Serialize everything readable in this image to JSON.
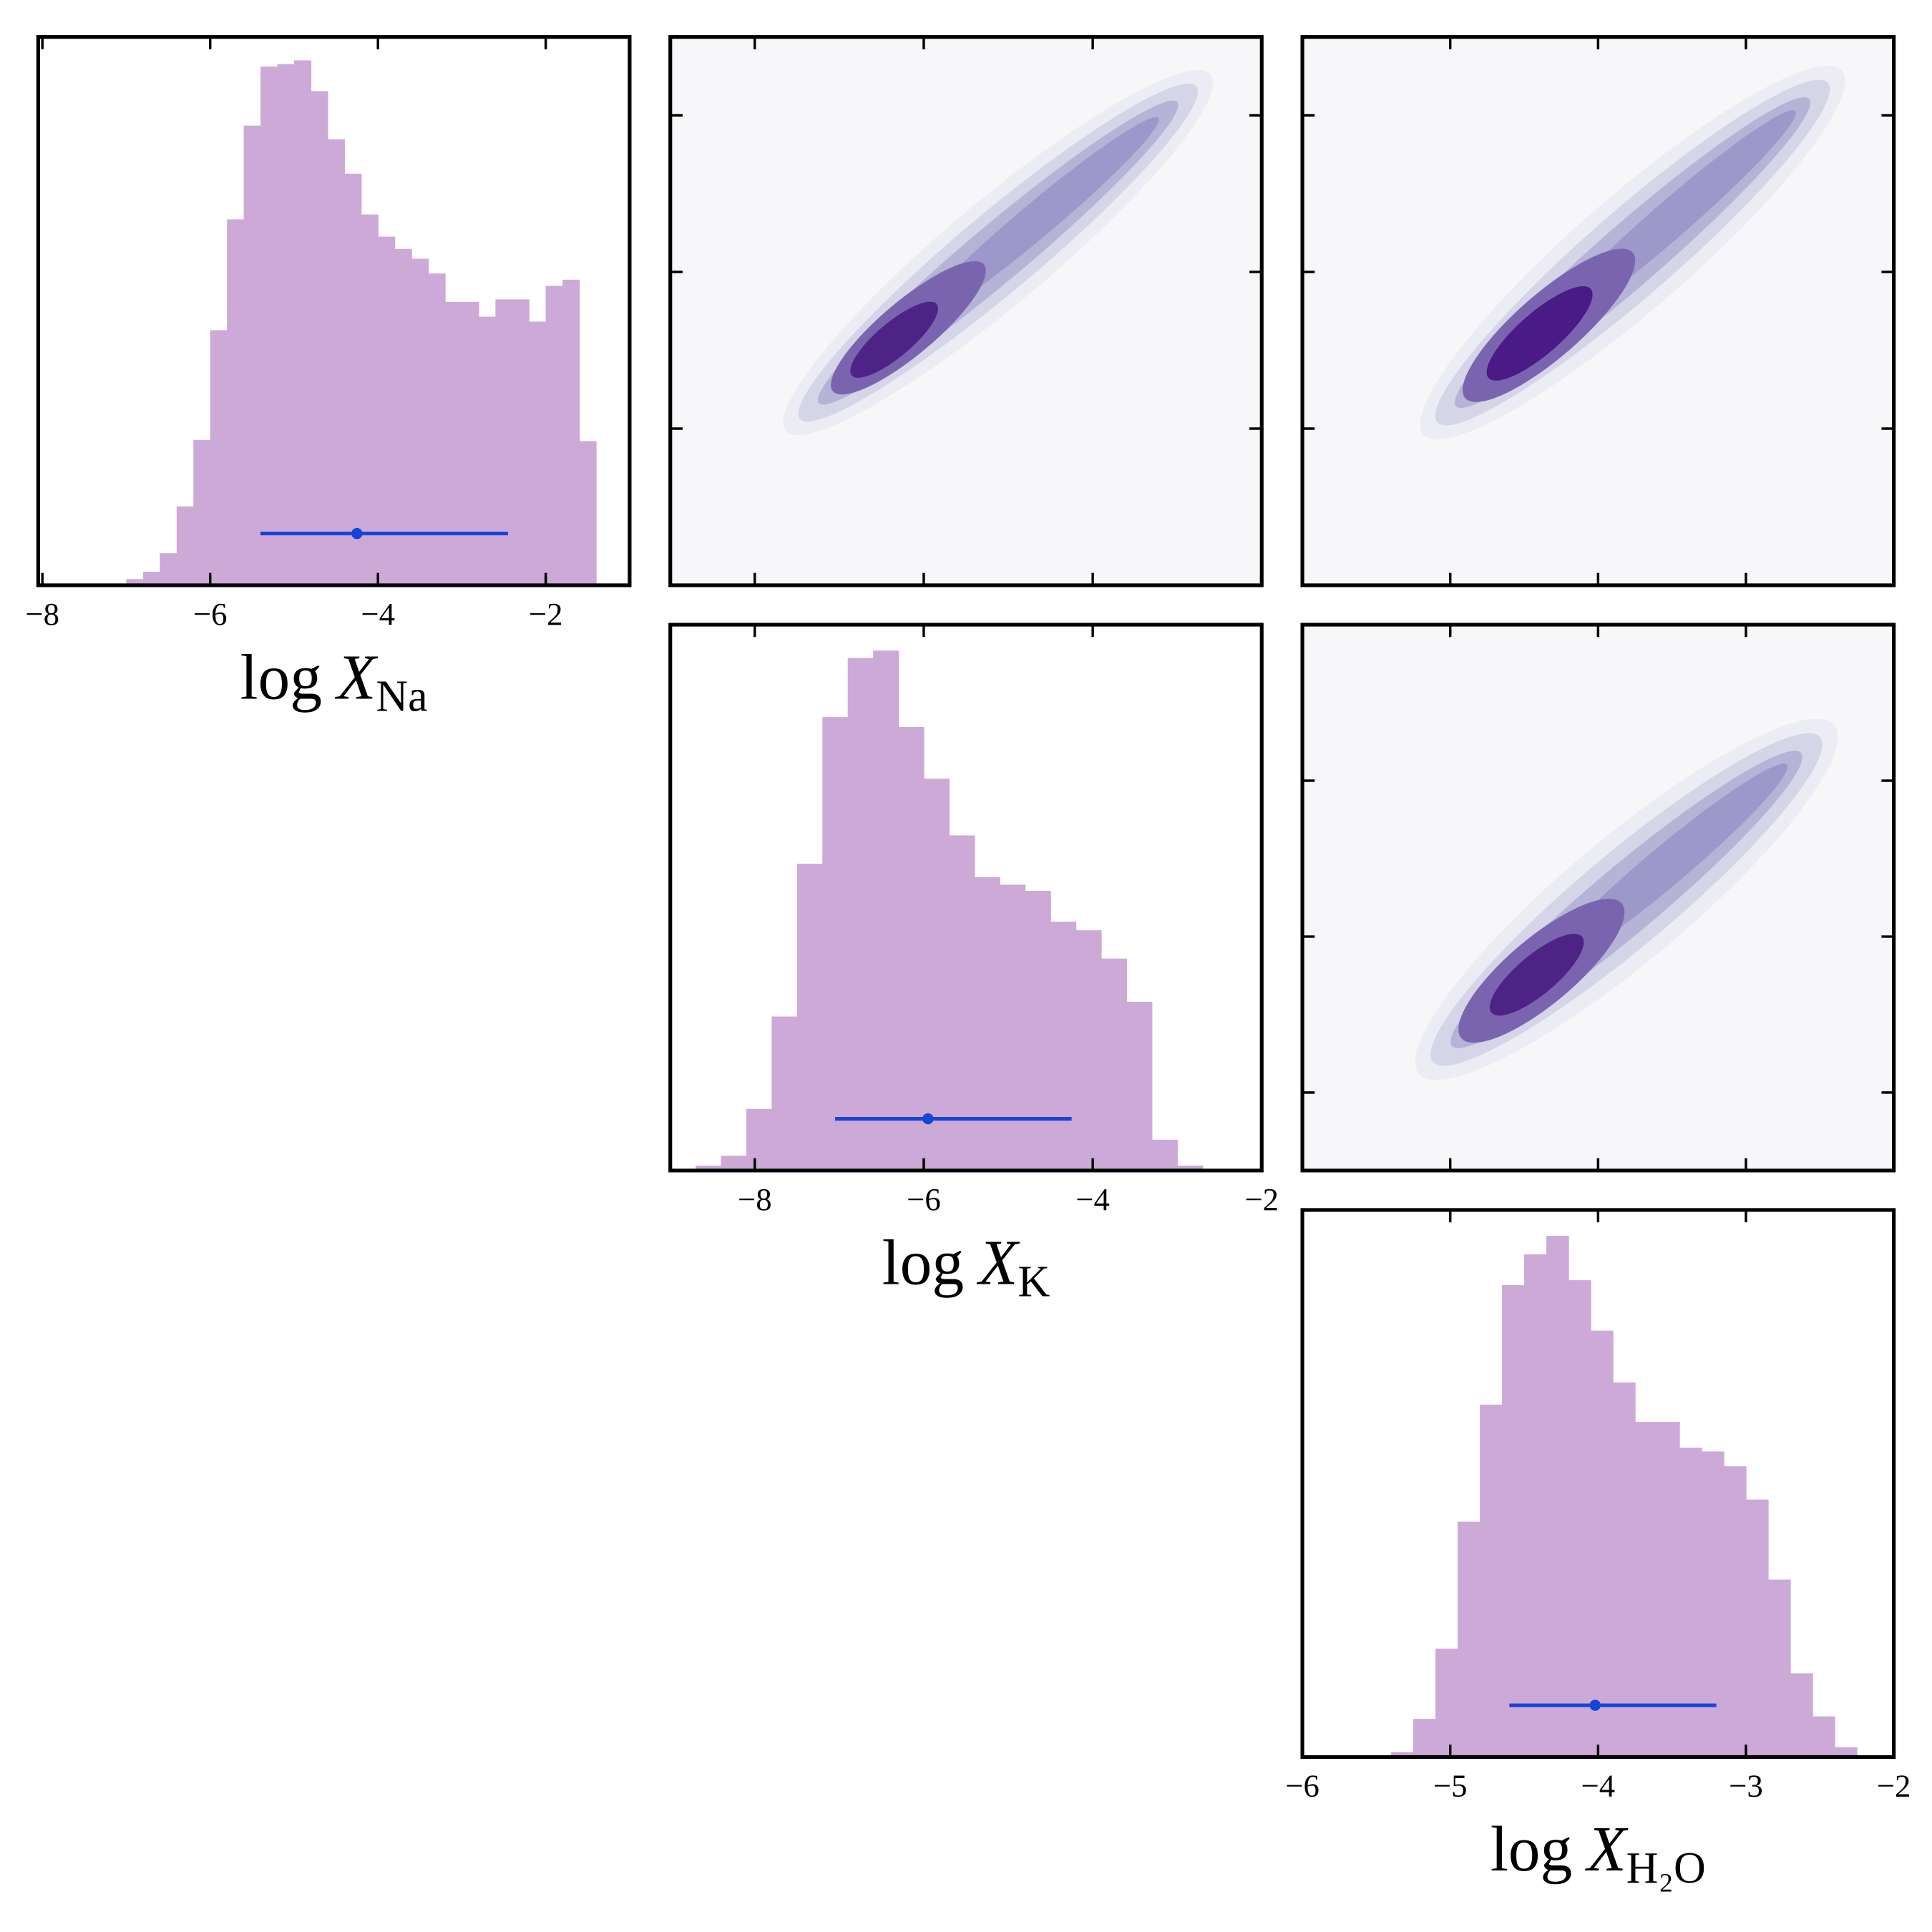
{
  "chart_data": [
    {
      "type": "histogram",
      "xlabel": [
        "log",
        "X",
        "Na"
      ],
      "color": "#cda9d8",
      "bins": [
        -7,
        -6.8,
        -6.6,
        -6.4,
        -6.2,
        -6,
        -5.8,
        -5.6,
        -5.4,
        -5.2,
        -5,
        -4.8,
        -4.6,
        -4.4,
        -4.2,
        -4,
        -3.8,
        -3.6,
        -3.4,
        -3.2,
        -3,
        -2.8,
        -2.6,
        -2.4,
        -2.2,
        -2,
        -1.8,
        -1.6,
        -1.4
      ],
      "values": [
        5,
        11,
        26,
        64,
        118,
        207,
        297,
        373,
        421,
        423,
        426,
        401,
        362,
        334,
        301,
        283,
        273,
        265,
        253,
        230,
        230,
        218,
        232,
        232,
        214,
        243,
        248,
        117
      ],
      "xlim": [
        -8.05,
        -1.0
      ],
      "ylim": [
        0,
        445
      ],
      "xticks": [
        {
          "value": -8,
          "label": "−8"
        },
        {
          "value": -6,
          "label": "−6"
        },
        {
          "value": -4,
          "label": "−4"
        },
        {
          "value": -2,
          "label": "−2"
        }
      ],
      "errorbar": {
        "median": -4.25,
        "interval": [
          -5.4,
          -2.45
        ],
        "color": "#1644d8"
      }
    },
    {
      "type": "histogram",
      "xlabel": [
        "log",
        "X",
        "K"
      ],
      "color": "#cda9d8",
      "bins": [
        -8.7,
        -8.4,
        -8.1,
        -7.8,
        -7.5,
        -7.2,
        -6.9,
        -6.6,
        -6.3,
        -6,
        -5.7,
        -5.4,
        -5.1,
        -4.8,
        -4.5,
        -4.2,
        -3.9,
        -3.6,
        -3.3,
        -3,
        -2.7
      ],
      "values": [
        4,
        12,
        50,
        125,
        249,
        368,
        416,
        422,
        360,
        318,
        272,
        238,
        232,
        227,
        202,
        195,
        172,
        137,
        25,
        4
      ],
      "xlim": [
        -9,
        -2
      ],
      "ylim": [
        0,
        443
      ],
      "xticks": [
        {
          "value": -8,
          "label": "−8"
        },
        {
          "value": -6,
          "label": "−6"
        },
        {
          "value": -4,
          "label": "−4"
        },
        {
          "value": -2,
          "label": "−2"
        }
      ],
      "errorbar": {
        "median": -5.95,
        "interval": [
          -7.05,
          -4.25
        ],
        "color": "#1644d8"
      }
    },
    {
      "type": "histogram",
      "xlabel": [
        "log",
        "X",
        "H₂O"
      ],
      "color": "#cda9d8",
      "bins": [
        -5.4,
        -5.25,
        -5.1,
        -4.95,
        -4.8,
        -4.65,
        -4.5,
        -4.35,
        -4.2,
        -4.05,
        -3.9,
        -3.75,
        -3.6,
        -3.45,
        -3.3,
        -3.15,
        -3,
        -2.85,
        -2.7,
        -2.55,
        -2.4,
        -2.25
      ],
      "values": [
        4,
        31,
        88,
        191,
        286,
        383,
        408,
        423,
        387,
        346,
        304,
        272,
        272,
        251,
        248,
        236,
        209,
        144,
        68,
        33,
        8
      ],
      "xlim": [
        -6,
        -2
      ],
      "ylim": [
        0,
        444
      ],
      "xticks": [
        {
          "value": -6,
          "label": "−6"
        },
        {
          "value": -5,
          "label": "−5"
        },
        {
          "value": -4,
          "label": "−4"
        },
        {
          "value": -3,
          "label": "−3"
        },
        {
          "value": -2,
          "label": "−2"
        }
      ],
      "errorbar": {
        "median": -4.02,
        "interval": [
          -4.6,
          -3.2
        ],
        "color": "#1644d8"
      }
    },
    {
      "type": "contour",
      "xlim": [
        -9,
        -2
      ],
      "ylim": [
        -8,
        -1
      ],
      "xticks": [
        -8,
        -6,
        -4
      ],
      "yticks": [
        -6,
        -4,
        -2
      ]
    },
    {
      "type": "contour",
      "xlim": [
        -6,
        -2
      ],
      "ylim": [
        -8,
        -1
      ],
      "xticks": [
        -5,
        -4,
        -3
      ],
      "yticks": [
        -6,
        -4,
        -2
      ]
    },
    {
      "type": "contour",
      "xlim": [
        -6,
        -2
      ],
      "ylim": [
        -9,
        -2
      ],
      "xticks": [
        -5,
        -4,
        -3
      ],
      "yticks": [
        -8,
        -6,
        -4
      ]
    }
  ]
}
